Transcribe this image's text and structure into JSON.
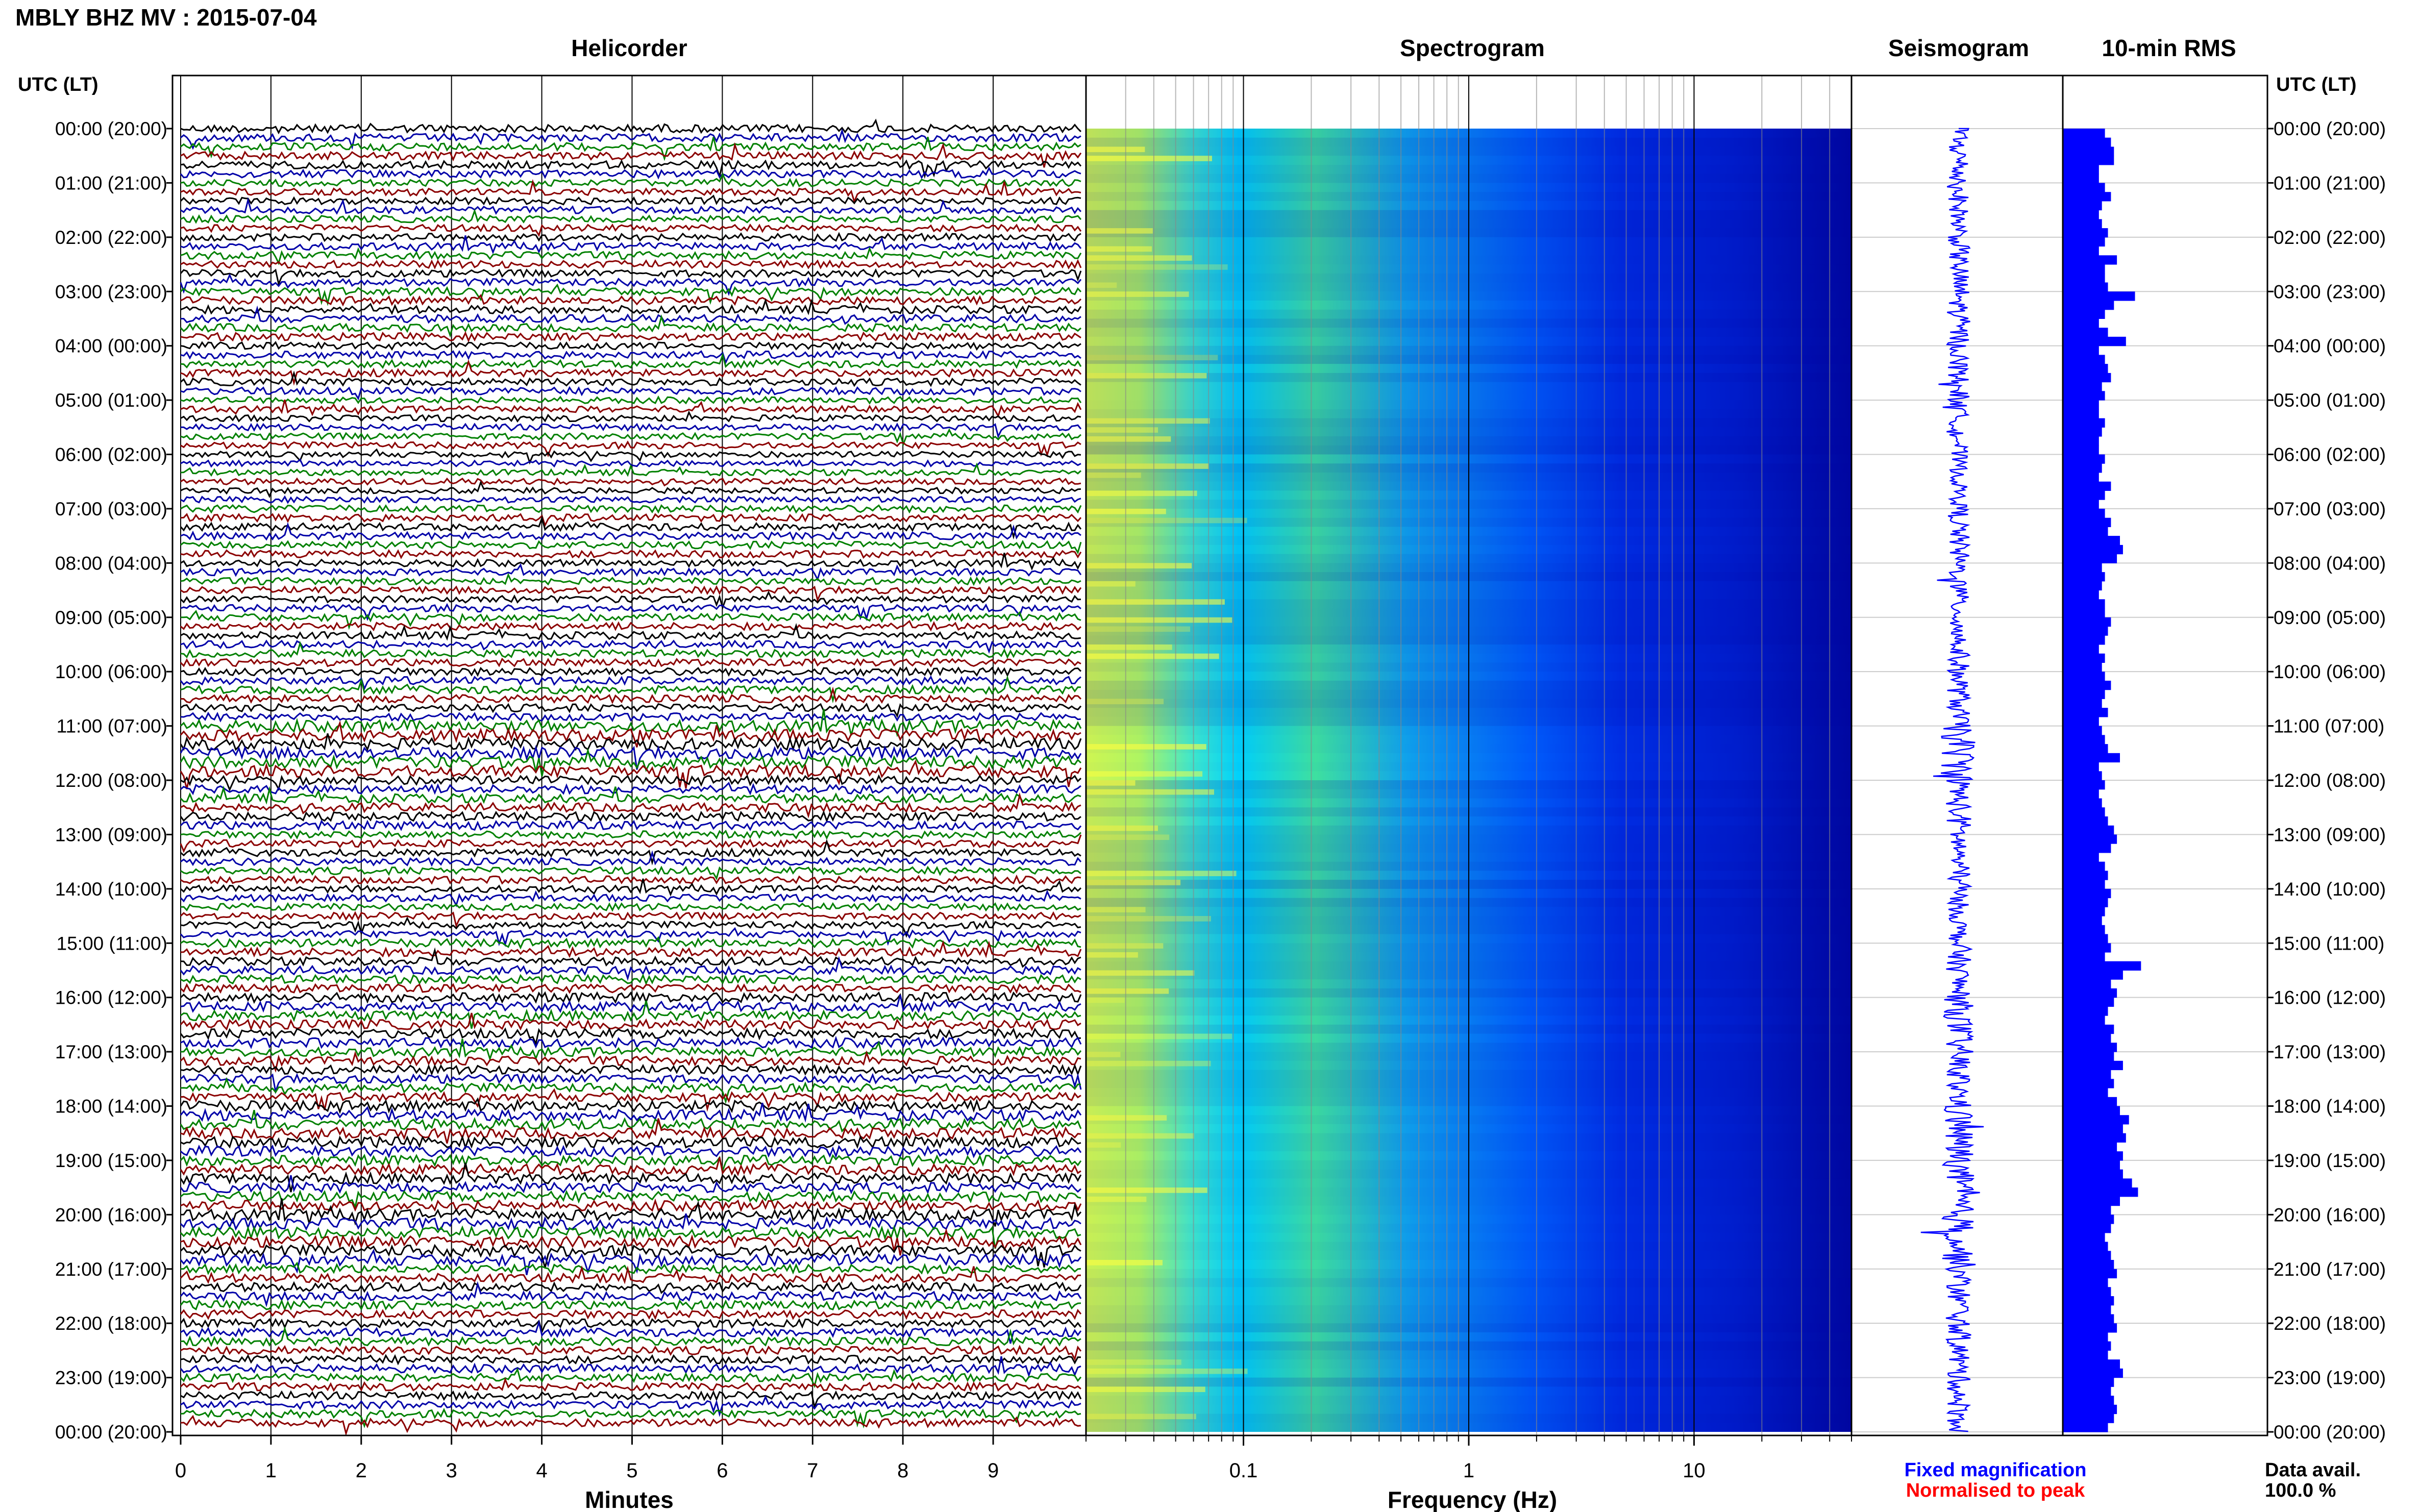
{
  "header": {
    "title": "MBLY BHZ MV : 2015-07-04",
    "col_helicorder": "Helicorder",
    "col_spectrogram": "Spectrogram",
    "col_seismogram": "Seismogram",
    "col_rms": "10-min RMS",
    "utc_label_left": "UTC (LT)",
    "utc_label_right": "UTC (LT)"
  },
  "footer": {
    "xlabel_minutes": "Minutes",
    "xlabel_frequency": "Frequency (Hz)",
    "legend_fixed": "Fixed magnification",
    "legend_normalised": "Normalised to peak",
    "data_avail_label": "Data avail.",
    "data_avail_value": "100.0 %"
  },
  "colors": {
    "helicorder_traces": [
      "#000000",
      "#0000a8",
      "#008000",
      "#8b0000"
    ],
    "seismogram": "#0000ff",
    "rms_bars": "#0000ff",
    "legend_fixed": "#0000ff",
    "legend_normalised": "#ff0000"
  },
  "chart_data": [
    {
      "type": "line",
      "panel": "helicorder",
      "xlabel": "Minutes",
      "x_ticks": [
        "0",
        "1",
        "2",
        "3",
        "4",
        "5",
        "6",
        "7",
        "8",
        "9"
      ],
      "xlim": [
        0,
        10
      ],
      "rows_per_hour": 6,
      "hours": 24,
      "y_ticks": [
        "00:00 (20:00)",
        "01:00 (21:00)",
        "02:00 (22:00)",
        "03:00 (23:00)",
        "04:00 (00:00)",
        "05:00 (01:00)",
        "06:00 (02:00)",
        "07:00 (03:00)",
        "08:00 (04:00)",
        "09:00 (05:00)",
        "10:00 (06:00)",
        "11:00 (07:00)",
        "12:00 (08:00)",
        "13:00 (09:00)",
        "14:00 (10:00)",
        "15:00 (11:00)",
        "16:00 (12:00)",
        "17:00 (13:00)",
        "18:00 (14:00)",
        "19:00 (15:00)",
        "20:00 (16:00)",
        "21:00 (17:00)",
        "22:00 (18:00)",
        "23:00 (19:00)",
        "00:00 (20:00)"
      ]
    },
    {
      "type": "heatmap",
      "panel": "spectrogram",
      "xlabel": "Frequency (Hz)",
      "x_scale": "log",
      "xlim": [
        0.02,
        50
      ],
      "x_ticks": [
        "0.1",
        "1",
        "10"
      ],
      "colormap": [
        "#ffff00",
        "#80ff80",
        "#00ffff",
        "#0080ff",
        "#0000ff",
        "#00008b"
      ]
    },
    {
      "type": "line",
      "panel": "seismogram",
      "amplitude_envelope_hourly": [
        0.5,
        0.4,
        0.45,
        0.5,
        0.45,
        0.35,
        0.3,
        0.45,
        0.4,
        0.45,
        0.5,
        0.9,
        0.6,
        0.45,
        0.4,
        0.55,
        0.7,
        0.6,
        0.8,
        0.75,
        0.85,
        0.6,
        0.55,
        0.5
      ]
    },
    {
      "type": "bar",
      "panel": "rms",
      "title": "10-min RMS",
      "orientation": "horizontal",
      "values": [
        0.7,
        0.8,
        0.85,
        0.85,
        0.6,
        0.6,
        0.7,
        0.8,
        0.65,
        0.6,
        0.65,
        0.75,
        0.7,
        0.6,
        0.9,
        0.7,
        0.7,
        0.75,
        1.2,
        0.85,
        0.7,
        0.6,
        0.75,
        1.05,
        0.6,
        0.7,
        0.75,
        0.8,
        0.65,
        0.7,
        0.6,
        0.6,
        0.7,
        0.65,
        0.6,
        0.6,
        0.7,
        0.65,
        0.6,
        0.8,
        0.7,
        0.6,
        0.7,
        0.8,
        0.75,
        0.95,
        1.0,
        0.9,
        0.65,
        0.7,
        0.65,
        0.6,
        0.7,
        0.7,
        0.8,
        0.75,
        0.7,
        0.6,
        0.7,
        0.65,
        0.7,
        0.8,
        0.7,
        0.65,
        0.75,
        0.6,
        0.65,
        0.7,
        0.75,
        0.95,
        0.6,
        0.65,
        0.7,
        0.6,
        0.65,
        0.7,
        0.75,
        0.85,
        0.9,
        0.8,
        0.6,
        0.7,
        0.75,
        0.7,
        0.8,
        0.75,
        0.7,
        0.65,
        0.7,
        0.75,
        0.8,
        0.7,
        1.3,
        1.0,
        0.8,
        0.9,
        0.85,
        0.75,
        0.7,
        0.85,
        0.8,
        0.9,
        0.85,
        1.0,
        0.8,
        0.85,
        0.75,
        0.9,
        0.95,
        1.1,
        1.0,
        1.05,
        0.9,
        1.0,
        0.95,
        1.0,
        1.15,
        1.25,
        0.95,
        0.8,
        0.85,
        0.8,
        0.7,
        0.75,
        0.8,
        0.85,
        0.9,
        0.75,
        0.8,
        0.85,
        0.8,
        0.85,
        0.9,
        0.75,
        0.8,
        0.75,
        0.95,
        1.0,
        0.85,
        0.8,
        0.85,
        0.9,
        0.85,
        0.75
      ]
    }
  ]
}
